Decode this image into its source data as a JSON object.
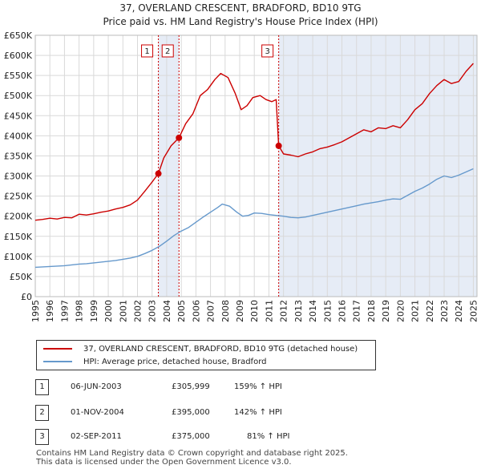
{
  "chart_data": {
    "type": "line",
    "title": "37, OVERLAND CRESCENT, BRADFORD, BD10 9TG",
    "subtitle": "Price paid vs. HM Land Registry's House Price Index (HPI)",
    "xlim": [
      1995,
      2025.25
    ],
    "ylim": [
      0,
      650000
    ],
    "x_ticks": [
      1995,
      1996,
      1997,
      1998,
      1999,
      2000,
      2001,
      2002,
      2003,
      2004,
      2005,
      2006,
      2007,
      2008,
      2009,
      2010,
      2011,
      2012,
      2013,
      2014,
      2015,
      2016,
      2017,
      2018,
      2019,
      2020,
      2021,
      2022,
      2023,
      2024,
      2025
    ],
    "y_ticks": [
      {
        "value": 0,
        "label": "£0"
      },
      {
        "value": 50000,
        "label": "£50K"
      },
      {
        "value": 100000,
        "label": "£100K"
      },
      {
        "value": 150000,
        "label": "£150K"
      },
      {
        "value": 200000,
        "label": "£200K"
      },
      {
        "value": 250000,
        "label": "£250K"
      },
      {
        "value": 300000,
        "label": "£300K"
      },
      {
        "value": 350000,
        "label": "£350K"
      },
      {
        "value": 400000,
        "label": "£400K"
      },
      {
        "value": 450000,
        "label": "£450K"
      },
      {
        "value": 500000,
        "label": "£500K"
      },
      {
        "value": 550000,
        "label": "£550K"
      },
      {
        "value": 600000,
        "label": "£600K"
      },
      {
        "value": 650000,
        "label": "£650K"
      }
    ],
    "series": [
      {
        "name": "37, OVERLAND CRESCENT, BRADFORD, BD10 9TG (detached house)",
        "color": "#cc0000",
        "points": [
          [
            1995.0,
            190000
          ],
          [
            1995.5,
            192000
          ],
          [
            1996.0,
            195000
          ],
          [
            1996.5,
            193000
          ],
          [
            1997.0,
            197000
          ],
          [
            1997.5,
            196000
          ],
          [
            1998.0,
            205000
          ],
          [
            1998.5,
            203000
          ],
          [
            1999.0,
            206000
          ],
          [
            1999.5,
            210000
          ],
          [
            2000.0,
            213000
          ],
          [
            2000.5,
            218000
          ],
          [
            2001.0,
            222000
          ],
          [
            2001.5,
            228000
          ],
          [
            2002.0,
            240000
          ],
          [
            2002.5,
            262000
          ],
          [
            2003.0,
            285000
          ],
          [
            2003.43,
            305999
          ],
          [
            2003.8,
            345000
          ],
          [
            2004.3,
            375000
          ],
          [
            2004.84,
            395000
          ],
          [
            2005.3,
            430000
          ],
          [
            2005.8,
            455000
          ],
          [
            2006.3,
            500000
          ],
          [
            2006.8,
            515000
          ],
          [
            2007.3,
            540000
          ],
          [
            2007.7,
            555000
          ],
          [
            2008.2,
            545000
          ],
          [
            2008.7,
            505000
          ],
          [
            2009.1,
            465000
          ],
          [
            2009.5,
            475000
          ],
          [
            2009.9,
            495000
          ],
          [
            2010.4,
            500000
          ],
          [
            2010.8,
            490000
          ],
          [
            2011.2,
            485000
          ],
          [
            2011.5,
            490000
          ],
          [
            2011.67,
            375000
          ],
          [
            2012.0,
            355000
          ],
          [
            2012.5,
            352000
          ],
          [
            2013.0,
            348000
          ],
          [
            2013.5,
            355000
          ],
          [
            2014.0,
            360000
          ],
          [
            2014.5,
            368000
          ],
          [
            2015.0,
            372000
          ],
          [
            2015.5,
            378000
          ],
          [
            2016.0,
            385000
          ],
          [
            2016.5,
            395000
          ],
          [
            2017.0,
            405000
          ],
          [
            2017.5,
            415000
          ],
          [
            2018.0,
            410000
          ],
          [
            2018.5,
            420000
          ],
          [
            2019.0,
            418000
          ],
          [
            2019.5,
            425000
          ],
          [
            2020.0,
            420000
          ],
          [
            2020.5,
            440000
          ],
          [
            2021.0,
            465000
          ],
          [
            2021.5,
            480000
          ],
          [
            2022.0,
            505000
          ],
          [
            2022.5,
            525000
          ],
          [
            2023.0,
            540000
          ],
          [
            2023.5,
            530000
          ],
          [
            2024.0,
            535000
          ],
          [
            2024.5,
            560000
          ],
          [
            2025.0,
            580000
          ]
        ]
      },
      {
        "name": "HPI: Average price, detached house, Bradford",
        "color": "#6699cc",
        "points": [
          [
            1995.0,
            73000
          ],
          [
            1995.5,
            74000
          ],
          [
            1996.0,
            75000
          ],
          [
            1996.5,
            76000
          ],
          [
            1997.0,
            77000
          ],
          [
            1997.5,
            79000
          ],
          [
            1998.0,
            81000
          ],
          [
            1998.5,
            82000
          ],
          [
            1999.0,
            84000
          ],
          [
            1999.5,
            86000
          ],
          [
            2000.0,
            88000
          ],
          [
            2000.5,
            90000
          ],
          [
            2001.0,
            93000
          ],
          [
            2001.5,
            96000
          ],
          [
            2002.0,
            100000
          ],
          [
            2002.5,
            107000
          ],
          [
            2003.0,
            115000
          ],
          [
            2003.5,
            125000
          ],
          [
            2004.0,
            138000
          ],
          [
            2004.5,
            152000
          ],
          [
            2005.0,
            163000
          ],
          [
            2005.5,
            172000
          ],
          [
            2006.0,
            185000
          ],
          [
            2006.5,
            198000
          ],
          [
            2007.0,
            210000
          ],
          [
            2007.5,
            222000
          ],
          [
            2007.8,
            230000
          ],
          [
            2008.3,
            225000
          ],
          [
            2008.8,
            210000
          ],
          [
            2009.2,
            200000
          ],
          [
            2009.6,
            202000
          ],
          [
            2010.0,
            208000
          ],
          [
            2010.5,
            207000
          ],
          [
            2011.0,
            204000
          ],
          [
            2011.5,
            202000
          ],
          [
            2012.0,
            200000
          ],
          [
            2012.5,
            197000
          ],
          [
            2013.0,
            196000
          ],
          [
            2013.5,
            198000
          ],
          [
            2014.0,
            202000
          ],
          [
            2014.5,
            206000
          ],
          [
            2015.0,
            210000
          ],
          [
            2015.5,
            214000
          ],
          [
            2016.0,
            218000
          ],
          [
            2016.5,
            222000
          ],
          [
            2017.0,
            226000
          ],
          [
            2017.5,
            230000
          ],
          [
            2018.0,
            233000
          ],
          [
            2018.5,
            236000
          ],
          [
            2019.0,
            240000
          ],
          [
            2019.5,
            243000
          ],
          [
            2020.0,
            242000
          ],
          [
            2020.5,
            252000
          ],
          [
            2021.0,
            262000
          ],
          [
            2021.5,
            270000
          ],
          [
            2022.0,
            280000
          ],
          [
            2022.5,
            292000
          ],
          [
            2023.0,
            300000
          ],
          [
            2023.5,
            296000
          ],
          [
            2024.0,
            302000
          ],
          [
            2024.5,
            310000
          ],
          [
            2025.0,
            318000
          ]
        ]
      }
    ],
    "markers": [
      {
        "label": "1",
        "x": 2003.43,
        "y": 305999
      },
      {
        "label": "2",
        "x": 2004.84,
        "y": 395000
      },
      {
        "label": "3",
        "x": 2011.67,
        "y": 375000
      }
    ],
    "shaded_spans": [
      [
        2003.43,
        2004.84
      ],
      [
        2011.67,
        2025.25
      ]
    ]
  },
  "legend": {
    "property_label": "37, OVERLAND CRESCENT, BRADFORD, BD10 9TG (detached house)",
    "hpi_label": "HPI: Average price, detached house, Bradford",
    "property_color": "#cc0000",
    "hpi_color": "#6699cc"
  },
  "transactions": [
    {
      "num": "1",
      "date": "06-JUN-2003",
      "price": "£305,999",
      "hpi": "159% ↑ HPI"
    },
    {
      "num": "2",
      "date": "01-NOV-2004",
      "price": "£395,000",
      "hpi": "142% ↑ HPI"
    },
    {
      "num": "3",
      "date": "02-SEP-2011",
      "price": "£375,000",
      "hpi": "81% ↑ HPI"
    }
  ],
  "footer": {
    "line1": "Contains HM Land Registry data © Crown copyright and database right 2025.",
    "line2": "This data is licensed under the Open Government Licence v3.0."
  }
}
